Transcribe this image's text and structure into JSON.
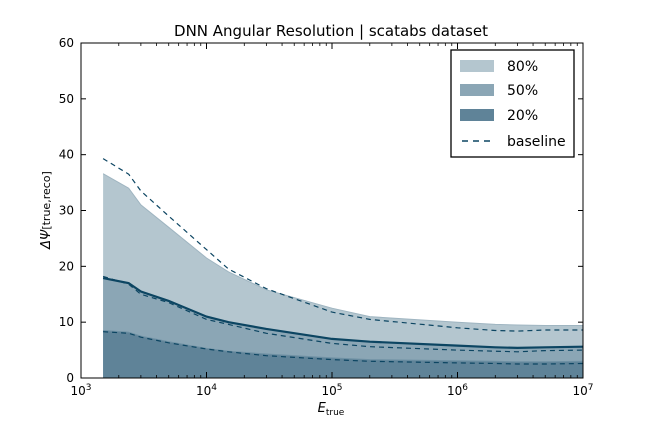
{
  "chart_data": {
    "type": "area",
    "title": "DNN Angular Resolution | scatabs dataset",
    "xlabel": {
      "main": "E",
      "sub": "true"
    },
    "ylabel": {
      "main": "ΔΨ",
      "sub": "[true,reco]"
    },
    "x_scale": "log",
    "xlim": [
      1000,
      10000000
    ],
    "ylim": [
      0,
      60
    ],
    "x_ticks": [
      {
        "value": 1000,
        "base": "10",
        "exp": "3"
      },
      {
        "value": 10000,
        "base": "10",
        "exp": "4"
      },
      {
        "value": 100000,
        "base": "10",
        "exp": "5"
      },
      {
        "value": 1000000,
        "base": "10",
        "exp": "6"
      },
      {
        "value": 10000000,
        "base": "10",
        "exp": "7"
      }
    ],
    "y_ticks": [
      0,
      10,
      20,
      30,
      40,
      50,
      60
    ],
    "y_tick_labels": [
      "0",
      "10",
      "20",
      "30",
      "40",
      "50",
      "60"
    ],
    "grid": false,
    "legend_position": "top-right",
    "x": [
      1500,
      2400,
      3000,
      5000,
      10000,
      15000,
      30000,
      100000,
      200000,
      1000000,
      2000000,
      3000000,
      5000000,
      10000000
    ],
    "series": [
      {
        "name": "80%",
        "kind": "band",
        "color": "#b4c6cf",
        "values": [
          36.6,
          34.0,
          31.0,
          27.0,
          21.5,
          19.0,
          15.8,
          12.5,
          11.0,
          10.0,
          9.6,
          9.5,
          9.4,
          9.4
        ]
      },
      {
        "name": "50%",
        "kind": "band",
        "color": "#8ba6b5",
        "values": [
          8.5,
          8.2,
          7.5,
          6.5,
          5.3,
          4.8,
          4.3,
          3.6,
          3.3,
          3.1,
          3.0,
          2.9,
          2.9,
          3.0
        ]
      },
      {
        "name": "20%",
        "kind": "line",
        "color": "#5f8398",
        "line_color": "#0c4562",
        "values": [
          17.9,
          17.0,
          15.5,
          13.8,
          11.0,
          10.0,
          8.8,
          7.0,
          6.5,
          5.8,
          5.5,
          5.4,
          5.5,
          5.6
        ]
      },
      {
        "name": "baseline",
        "kind": "dashed",
        "color": "#0c4562",
        "curves": [
          [
            39.3,
            36.5,
            33.5,
            29.0,
            23.0,
            19.5,
            16.0,
            11.8,
            10.5,
            9.0,
            8.5,
            8.4,
            8.6,
            8.6
          ],
          [
            18.2,
            16.8,
            15.0,
            13.5,
            10.5,
            9.6,
            8.0,
            6.2,
            5.6,
            5.0,
            4.8,
            4.7,
            4.9,
            5.0
          ],
          [
            8.3,
            8.0,
            7.3,
            6.3,
            5.2,
            4.7,
            4.0,
            3.3,
            3.0,
            2.7,
            2.6,
            2.5,
            2.5,
            2.6
          ]
        ]
      }
    ]
  }
}
